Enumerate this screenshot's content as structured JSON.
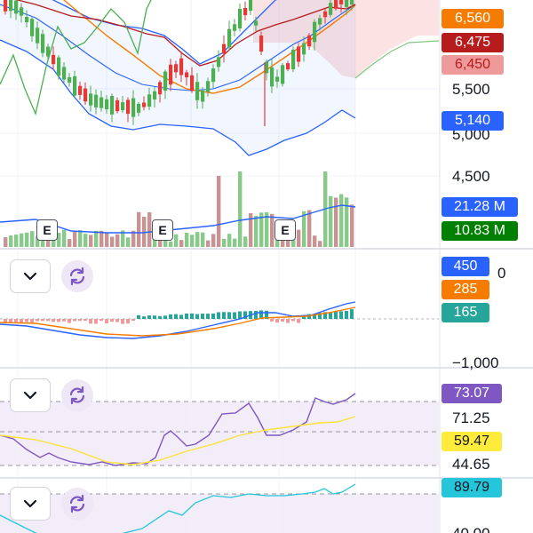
{
  "main_pane": {
    "scale_labels": [
      "5,500",
      "5,000",
      "4,500"
    ],
    "price_badges": [
      {
        "text": "6,560",
        "color": "#f57c00"
      },
      {
        "text": "6,475",
        "color": "#b71c1c"
      },
      {
        "text": "6,450",
        "color": "#ef9a9a",
        "text_color": "#b71c1c"
      },
      {
        "text": "5,140",
        "color": "#2962ff"
      }
    ],
    "volume_badges": [
      {
        "text": "21.28 M",
        "color": "#2962ff"
      },
      {
        "text": "10.83 M",
        "color": "#008000"
      }
    ],
    "earnings_markers": [
      "E",
      "E",
      "E"
    ]
  },
  "macd_pane": {
    "scale_labels": [
      "0",
      "−1,000"
    ],
    "badges": [
      {
        "text": "450",
        "color": "#2962ff"
      },
      {
        "text": "285",
        "color": "#f57c00"
      },
      {
        "text": "165",
        "color": "#26a69a"
      }
    ]
  },
  "rsi_pane": {
    "scale_labels": [
      "71.25",
      "44.65"
    ],
    "badges": [
      {
        "text": "73.07",
        "color": "#7e57c2"
      },
      {
        "text": "59.47",
        "color": "#ffeb3b",
        "text_color": "#131722"
      }
    ]
  },
  "stoch_pane": {
    "scale_labels": [
      "40.00"
    ],
    "badges": [
      {
        "text": "89.79",
        "color": "#26c6da",
        "text_color": "#131722"
      }
    ]
  },
  "icons": [
    "chevron-down-icon",
    "refresh-icon"
  ],
  "colors": {
    "up": "#4caf50",
    "down": "#e53935",
    "bollinger": "#2962ff",
    "ma_orange": "#f57c00",
    "ma_red": "#b71c1c",
    "rsi": "#7e57c2",
    "rsi_ma": "#fbe33a",
    "stoch": "#26c6da",
    "cloud_green": "#81c784",
    "cloud_red": "#ef9a9a"
  }
}
